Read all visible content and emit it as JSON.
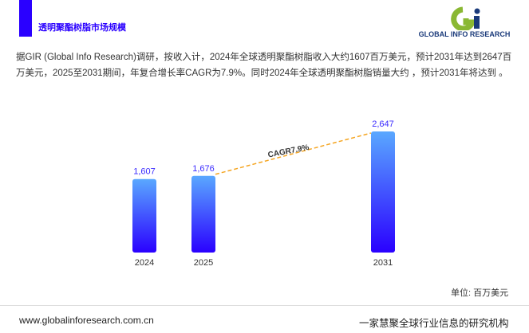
{
  "header": {
    "title": "透明聚酯树脂市场规模",
    "logo_text": "GLOBAL INFO RESEARCH"
  },
  "description": "据GIR (Global Info Research)调研，按收入计，2024年全球透明聚酯树脂收入大约1607百万美元，预计2031年达到2647百万美元，2025至2031期间，年复合增长率CAGR为7.9%。同时2024年全球透明聚酯树脂销量大约 ，预计2031年将达到 。",
  "chart_data": {
    "type": "bar",
    "categories": [
      "2024",
      "2025",
      "2031"
    ],
    "values": [
      1607,
      1676,
      2647
    ],
    "data_labels": [
      "1,607",
      "1,676",
      "2,647"
    ],
    "annotation": "CAGR7.9%",
    "unit": "单位: 百万美元",
    "ylim": [
      0,
      2800
    ],
    "grid": false,
    "colors": {
      "bar_top": "#5aa8ff",
      "bar_bottom": "#2a00ff",
      "cagr_line": "#f5a623",
      "label": "#3a2aff"
    }
  },
  "footer": {
    "url": "www.globalinforesearch.com.cn",
    "slogan": "一家慧聚全球行业信息的研究机构"
  }
}
